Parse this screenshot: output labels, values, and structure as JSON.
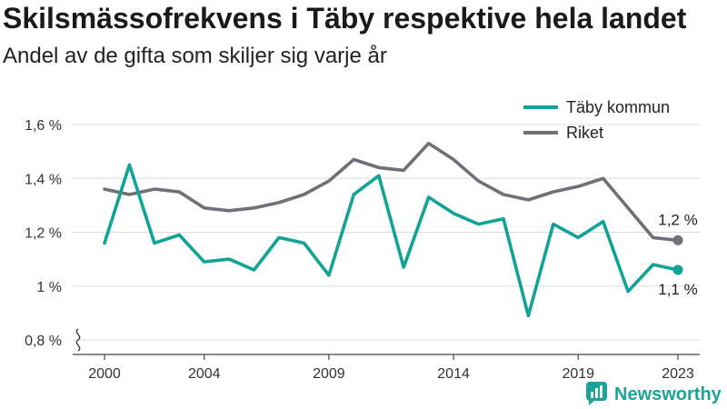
{
  "chart_data": {
    "type": "line",
    "title": "Skilsmässofrekvens i Täby respektive hela landet",
    "subtitle": "Andel av de gifta som skiljer sig varje år",
    "x": [
      2000,
      2001,
      2002,
      2003,
      2004,
      2005,
      2006,
      2007,
      2008,
      2009,
      2010,
      2011,
      2012,
      2013,
      2014,
      2015,
      2016,
      2017,
      2018,
      2019,
      2020,
      2021,
      2022,
      2023
    ],
    "xlim": [
      2000,
      2023
    ],
    "ylim": [
      0.8,
      1.6
    ],
    "y_ticks": [
      0.8,
      1.0,
      1.2,
      1.4,
      1.6
    ],
    "y_tick_labels": [
      "0,8 %",
      "1 %",
      "1,2 %",
      "1,4 %",
      "1,6 %"
    ],
    "x_ticks": [
      2000,
      2004,
      2009,
      2014,
      2019,
      2023
    ],
    "x_tick_labels": [
      "2000",
      "2004",
      "2009",
      "2014",
      "2019",
      "2023"
    ],
    "y_axis_break": true,
    "grid": true,
    "legend_position": "top-right",
    "series": [
      {
        "name": "Täby kommun",
        "color": "#11a396",
        "values": [
          1.16,
          1.45,
          1.16,
          1.19,
          1.09,
          1.1,
          1.06,
          1.18,
          1.16,
          1.04,
          1.34,
          1.41,
          1.07,
          1.33,
          1.27,
          1.23,
          1.25,
          0.89,
          1.23,
          1.18,
          1.24,
          0.98,
          1.08,
          1.06
        ],
        "end_label": "1,1 %"
      },
      {
        "name": "Riket",
        "color": "#707076",
        "values": [
          1.36,
          1.34,
          1.36,
          1.35,
          1.29,
          1.28,
          1.29,
          1.31,
          1.34,
          1.39,
          1.47,
          1.44,
          1.43,
          1.53,
          1.47,
          1.39,
          1.34,
          1.32,
          1.35,
          1.37,
          1.4,
          1.29,
          1.18,
          1.17
        ],
        "end_label": "1,2 %"
      }
    ]
  },
  "logo": {
    "text": "Newsworthy",
    "icon": "newsworthy-chart-icon",
    "color": "#1ba39a"
  }
}
